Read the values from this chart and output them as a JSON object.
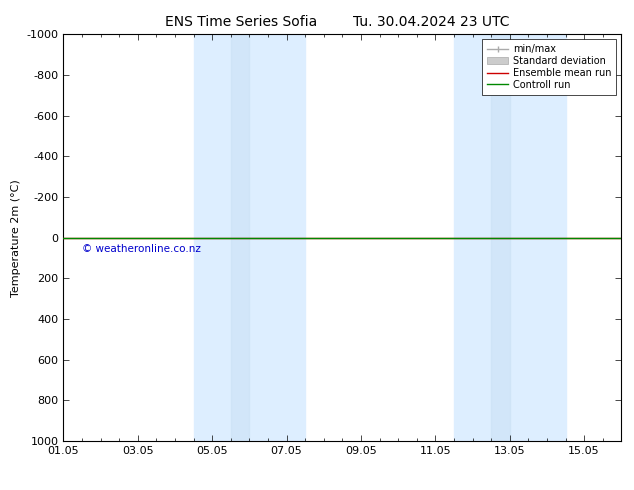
{
  "title_left": "ENS Time Series Sofia",
  "title_right": "Tu. 30.04.2024 23 UTC",
  "ylabel": "Temperature 2m (°C)",
  "xlim_min": 0,
  "xlim_max": 15,
  "ylim_bottom": 1000,
  "ylim_top": -1000,
  "yticks": [
    -1000,
    -800,
    -600,
    -400,
    -200,
    0,
    200,
    400,
    600,
    800,
    1000
  ],
  "ytick_labels": [
    "-1000",
    "-800",
    "-600",
    "-400",
    "-200",
    "0",
    "200",
    "400",
    "600",
    "800",
    "1000"
  ],
  "xtick_labels": [
    "01.05",
    "03.05",
    "05.05",
    "07.05",
    "09.05",
    "11.05",
    "13.05",
    "15.05"
  ],
  "xtick_positions": [
    0,
    2,
    4,
    6,
    8,
    10,
    12,
    14
  ],
  "shaded_bands": [
    [
      3.5,
      5.5
    ],
    [
      5.5,
      6.5
    ],
    [
      10.5,
      12.0
    ],
    [
      12.0,
      13.5
    ]
  ],
  "shade_colors": [
    "#ddeeff",
    "#ddeeff",
    "#ddeeff",
    "#ddeeff"
  ],
  "control_run_y": 0,
  "ensemble_mean_y": 0,
  "control_run_color": "#008800",
  "ensemble_mean_color": "#cc0000",
  "min_max_color": "#aaaaaa",
  "std_dev_color": "#cccccc",
  "watermark": "© weatheronline.co.nz",
  "watermark_color": "#0000cc",
  "background_color": "#ffffff",
  "legend_fontsize": 7,
  "tick_fontsize": 8,
  "title_fontsize": 10,
  "ylabel_fontsize": 8
}
